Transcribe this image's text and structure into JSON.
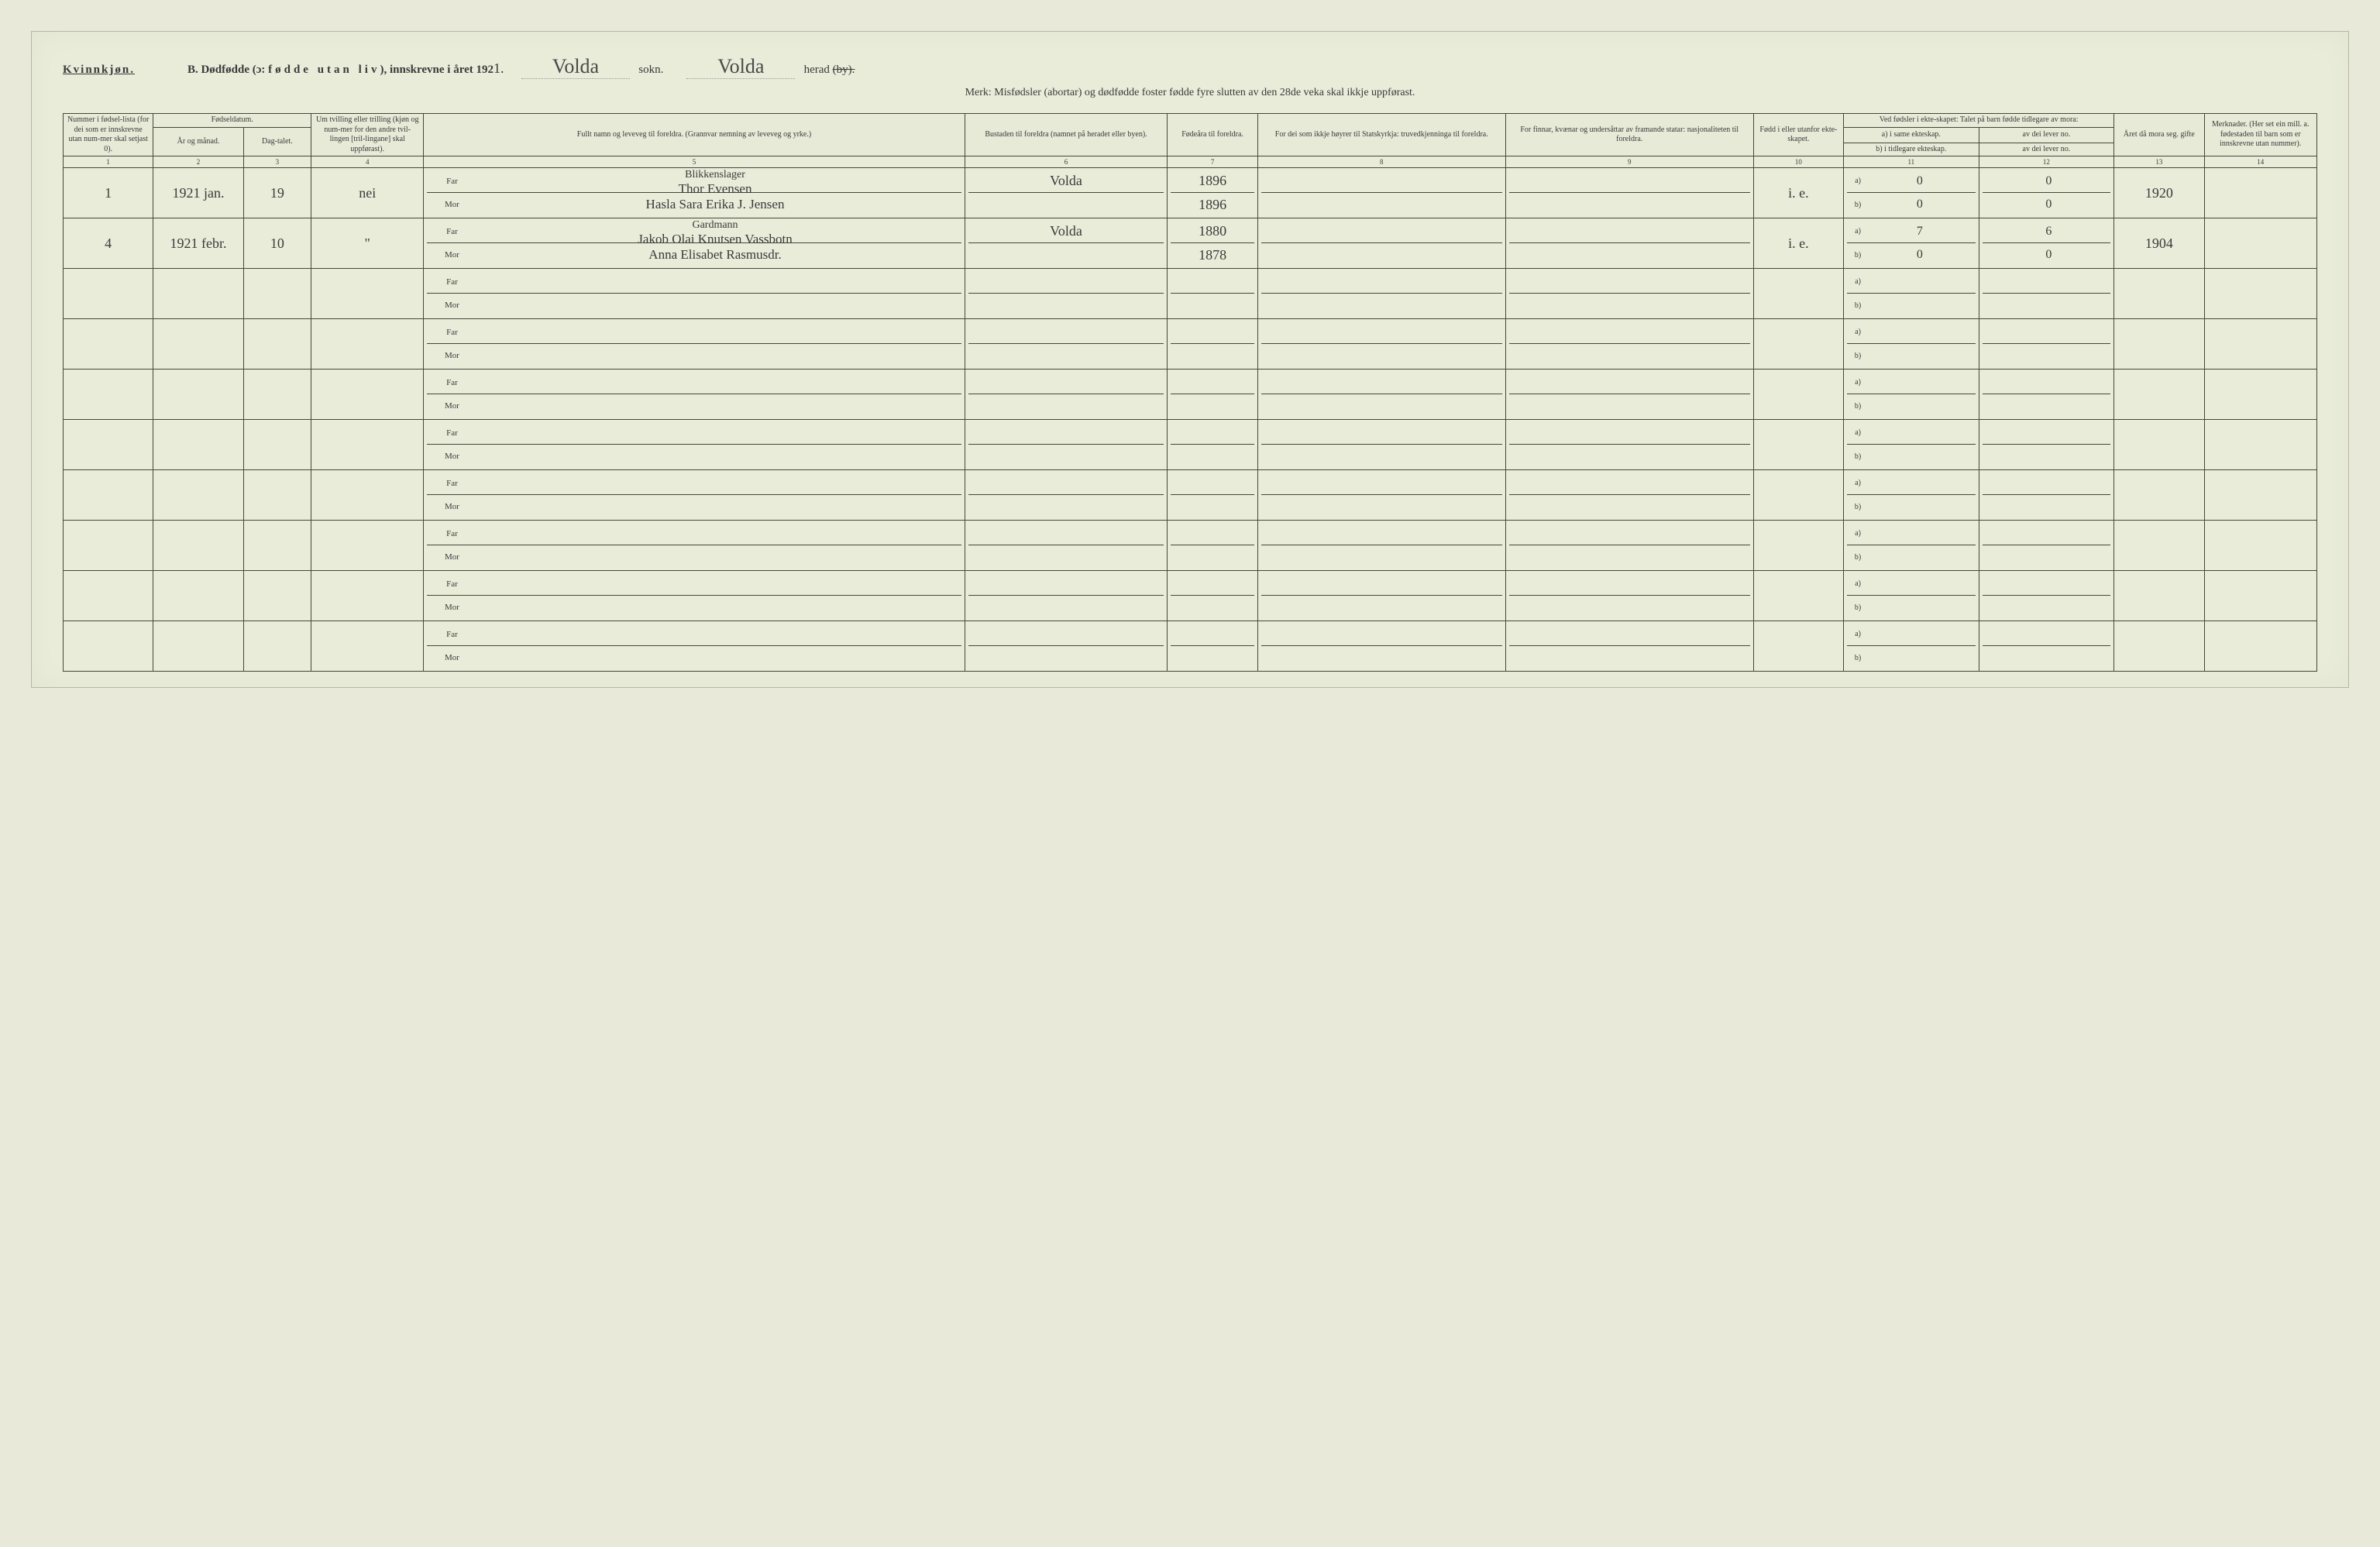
{
  "header": {
    "kvinn": "Kvinnkjøn.",
    "titlePrefix": "B.  Dødfødde (ɔ: ",
    "titleSpaced": "fødde utan liv",
    "titleSuffix": "), innskrevne i året 192",
    "yearSuffixHand": "1.",
    "sokn": "sokn.",
    "soknHand": "Volda",
    "herad": "herad",
    "heradStruck": "(by).",
    "heradHand": "Volda",
    "subhead": "Merk:  Misfødsler (abortar) og dødfødde foster fødde fyre slutten av den 28de veka skal ikkje uppførast."
  },
  "columns": {
    "c1": "Nummer i fødsel-lista (for dei som er innskrevne utan num-mer skal setjast 0).",
    "c2a": "Fødseldatum.",
    "c2": "År og månad.",
    "c3": "Dag-talet.",
    "c4": "Um tvilling eller trilling (kjøn og num-mer for den andre tvil-lingen [tril-lingane] skal uppførast).",
    "c5": "Fullt namn og leveveg til foreldra. (Grannvar nemning av leveveg og yrke.)",
    "c6": "Bustaden til foreldra (namnet på heradet eller byen).",
    "c7": "Fødeåra til foreldra.",
    "c8": "For dei som ikkje høyrer til Statskyrkja: truvedkjenninga til foreldra.",
    "c9": "For finnar, kvænar og undersåttar av framande statar: nasjonaliteten til foreldra.",
    "c10": "Fødd i eller utanfor ekte-skapet.",
    "c11top": "Ved fødsler i ekte-skapet: Talet på barn fødde tidlegare av mora:",
    "c11a": "a) i same ekteskap.",
    "c11b": "b) i tidlegare ekteskap.",
    "c12a": "av dei lever no.",
    "c12b": "av dei lever no.",
    "c13": "Året då mora seg. gifte",
    "c14": "Merknader. (Her set ein mill. a. fødestaden til barn som er innskrevne utan nummer)."
  },
  "colnums": [
    "1",
    "2",
    "3",
    "4",
    "5",
    "6",
    "7",
    "8",
    "9",
    "10",
    "11",
    "12",
    "13",
    "14"
  ],
  "labels": {
    "far": "Far",
    "mor": "Mor",
    "a": "a)",
    "b": "b)"
  },
  "rows": [
    {
      "num": "1",
      "aar": "1921 jan.",
      "dag": "19",
      "tvilling": "nei",
      "far_occ": "Blikkenslager",
      "far": "Thor Evensen",
      "mor": "Hasla Sara Erika J. Jensen",
      "bustad": "Volda",
      "far_aar": "1896",
      "mor_aar": "1896",
      "ekte": "i. e.",
      "a_same": "0",
      "a_lever": "0",
      "b_tidl": "0",
      "b_lever": "0",
      "gifte": "1920"
    },
    {
      "num": "4",
      "aar": "1921 febr.",
      "dag": "10",
      "tvilling": "\"",
      "far_occ": "Gardmann",
      "far": "Jakob Olai Knutsen Vassbotn",
      "mor": "Anna Elisabet Rasmusdr.",
      "bustad": "Volda",
      "far_aar": "1880",
      "mor_aar": "1878",
      "ekte": "i. e.",
      "a_same": "7",
      "a_lever": "6",
      "b_tidl": "0",
      "b_lever": "0",
      "gifte": "1904"
    }
  ],
  "style": {
    "bg": "#e8ecd9",
    "border": "#46463a",
    "text": "#3a3a3a",
    "hand": "#4a4a4a",
    "empty_rows": 8
  }
}
